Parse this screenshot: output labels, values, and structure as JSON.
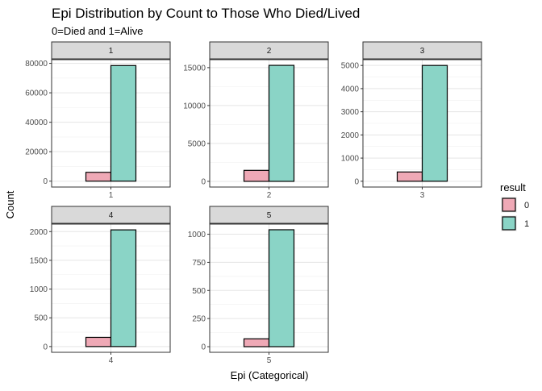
{
  "chart_data": {
    "type": "bar",
    "title": "Epi Distribution by Count to Those Who Died/Lived",
    "subtitle": "0=Died and 1=Alive",
    "xlabel": "Epi (Categorical)",
    "ylabel": "Count",
    "grid": true,
    "legend": {
      "title": "result",
      "position": "right",
      "entries": [
        {
          "label": "0",
          "color": "#efa9b6"
        },
        {
          "label": "1",
          "color": "#8ad4c6"
        }
      ]
    },
    "facets": [
      {
        "strip": "1",
        "category": "1",
        "values": {
          "0": 6000,
          "1": 78500
        },
        "ylim": [
          -4000,
          82500
        ],
        "yticks": [
          0,
          20000,
          40000,
          60000,
          80000
        ],
        "ytick_labels": [
          "0",
          "20000",
          "40000",
          "60000",
          "80000"
        ]
      },
      {
        "strip": "2",
        "category": "2",
        "values": {
          "0": 1450,
          "1": 15300
        },
        "ylim": [
          -750,
          16050
        ],
        "yticks": [
          0,
          5000,
          10000,
          15000
        ],
        "ytick_labels": [
          "0",
          "5000",
          "10000",
          "15000"
        ]
      },
      {
        "strip": "3",
        "category": "3",
        "values": {
          "0": 400,
          "1": 5000
        },
        "ylim": [
          -250,
          5250
        ],
        "yticks": [
          0,
          1000,
          2000,
          3000,
          4000,
          5000
        ],
        "ytick_labels": [
          "0",
          "1000",
          "2000",
          "3000",
          "4000",
          "5000"
        ]
      },
      {
        "strip": "4",
        "category": "4",
        "values": {
          "0": 160,
          "1": 2030
        },
        "ylim": [
          -100,
          2130
        ],
        "yticks": [
          0,
          500,
          1000,
          1500,
          2000
        ],
        "ytick_labels": [
          "0",
          "500",
          "1000",
          "1500",
          "2000"
        ]
      },
      {
        "strip": "5",
        "category": "5",
        "values": {
          "0": 70,
          "1": 1040
        },
        "ylim": [
          -50,
          1090
        ],
        "yticks": [
          0,
          250,
          500,
          750,
          1000
        ],
        "ytick_labels": [
          "0",
          "250",
          "500",
          "750",
          "1000"
        ]
      }
    ]
  }
}
